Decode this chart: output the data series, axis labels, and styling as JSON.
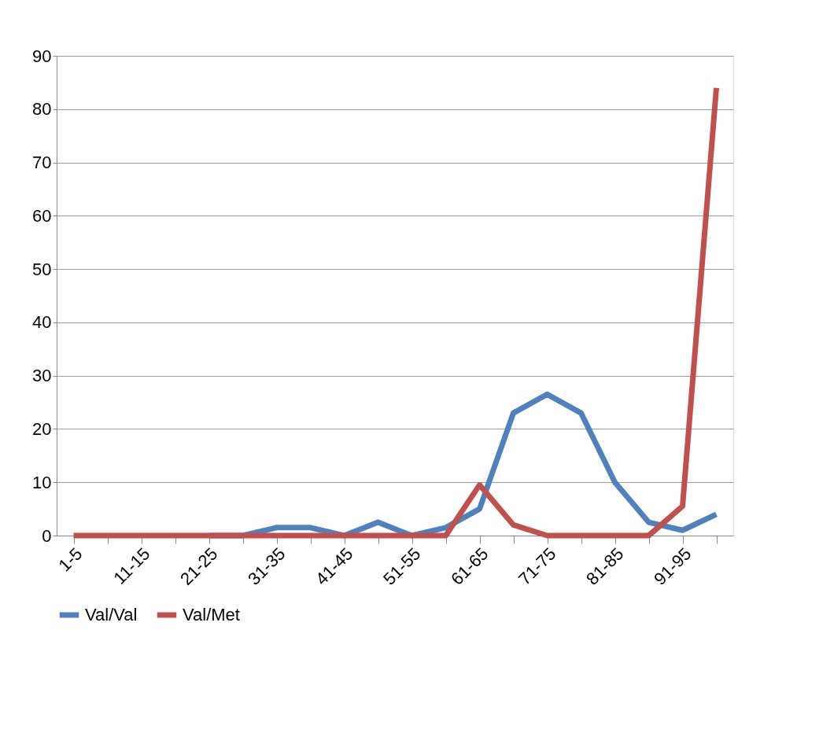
{
  "chart_data": {
    "type": "line",
    "categories": [
      "1-5",
      null,
      "11-15",
      null,
      "21-25",
      null,
      "31-35",
      null,
      "41-45",
      null,
      "51-55",
      null,
      "61-65",
      null,
      "71-75",
      null,
      "81-85",
      null,
      "91-95",
      null
    ],
    "series": [
      {
        "name": "Val/Val",
        "color": "#4f81bd",
        "values": [
          null,
          null,
          null,
          null,
          0,
          0,
          1.5,
          1.5,
          0,
          2.5,
          0,
          1.5,
          5,
          23,
          26.5,
          23,
          10,
          2.5,
          1,
          4
        ]
      },
      {
        "name": "Val/Met",
        "color": "#c0504d",
        "values": [
          0,
          0,
          0,
          0,
          0,
          0,
          0,
          0,
          0,
          0,
          0,
          0,
          9.5,
          2,
          0,
          0,
          0,
          0,
          5.5,
          84
        ]
      }
    ],
    "ylim": [
      0,
      90
    ],
    "yticks": [
      0,
      10,
      20,
      30,
      40,
      50,
      60,
      70,
      80,
      90
    ],
    "grid": "y",
    "legend": "bottom",
    "marker": "none",
    "line_style": "solid"
  }
}
